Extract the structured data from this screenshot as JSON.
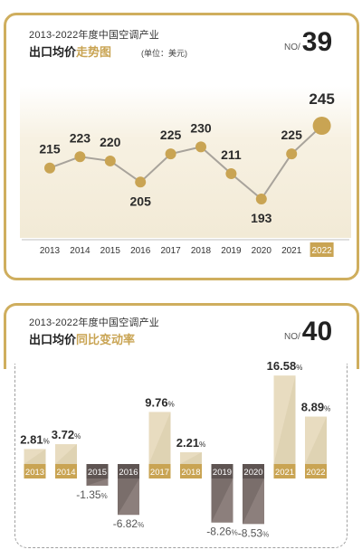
{
  "panels": [
    {
      "title_line1": "2013-2022年度中国空调产业",
      "title_line2_main": "出口均价",
      "title_line2_hl": "走势图",
      "unit": "(单位：美元)",
      "no_label": "NO/",
      "no_num": "39"
    },
    {
      "title_line1": "2013-2022年度中国空调产业",
      "title_line2_main": "出口均价",
      "title_line2_hl": "同比变动率",
      "no_label": "NO/",
      "no_num": "40"
    }
  ],
  "colors": {
    "gold": "#c9a453",
    "gold_dark": "#b8974a",
    "beige": "#e8dcc0",
    "taupe": "#8c7f7c",
    "dark": "#6e6361"
  },
  "chart_data": [
    {
      "type": "line",
      "title": "2013-2022年度中国空调产业出口均价走势图",
      "ylabel": "(单位：美元)",
      "categories": [
        "2013",
        "2014",
        "2015",
        "2016",
        "2017",
        "2018",
        "2019",
        "2020",
        "2021",
        "2022"
      ],
      "values": [
        215,
        223,
        220,
        205,
        225,
        230,
        211,
        193,
        225,
        245
      ],
      "value_labels": [
        "215",
        "223",
        "220",
        "205",
        "225",
        "230",
        "211",
        "193",
        "225",
        "245"
      ],
      "highlight": "2022"
    },
    {
      "type": "bar",
      "title": "2013-2022年度中国空调产业出口均价同比变动率",
      "categories": [
        "2013",
        "2014",
        "2015",
        "2016",
        "2017",
        "2018",
        "2019",
        "2020",
        "2021",
        "2022"
      ],
      "values": [
        2.81,
        3.72,
        -1.35,
        -6.82,
        9.76,
        2.21,
        -8.26,
        -8.53,
        16.58,
        8.89
      ],
      "value_labels": [
        "2.81",
        "3.72",
        "-1.35",
        "-6.82",
        "9.76",
        "2.21",
        "-8.26",
        "-8.53",
        "16.58",
        "8.89"
      ],
      "unit_symbol": "%"
    }
  ]
}
